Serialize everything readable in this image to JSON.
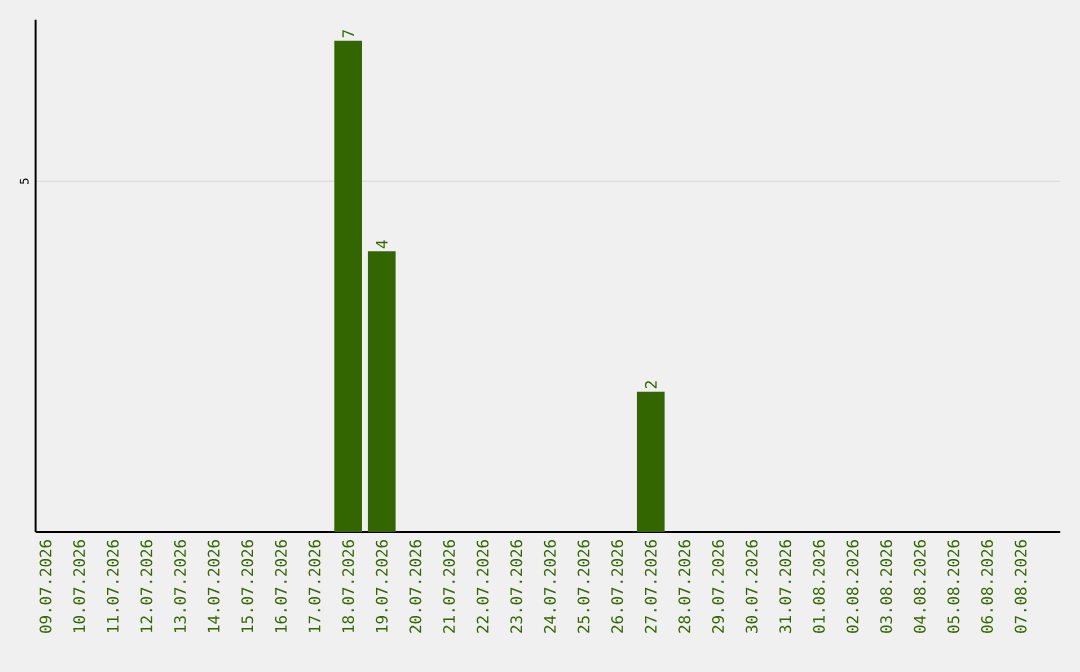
{
  "chart_data": {
    "type": "bar",
    "categories": [
      "09.07.2026",
      "10.07.2026",
      "11.07.2026",
      "12.07.2026",
      "13.07.2026",
      "14.07.2026",
      "15.07.2026",
      "16.07.2026",
      "17.07.2026",
      "18.07.2026",
      "19.07.2026",
      "20.07.2026",
      "21.07.2026",
      "22.07.2026",
      "23.07.2026",
      "24.07.2026",
      "25.07.2026",
      "26.07.2026",
      "27.07.2026",
      "28.07.2026",
      "29.07.2026",
      "30.07.2026",
      "31.07.2026",
      "01.08.2026",
      "02.08.2026",
      "03.08.2026",
      "04.08.2026",
      "05.08.2026",
      "06.08.2026",
      "07.08.2026"
    ],
    "values": [
      0,
      0,
      0,
      0,
      0,
      0,
      0,
      0,
      0,
      7,
      4,
      0,
      0,
      0,
      0,
      0,
      0,
      0,
      2,
      0,
      0,
      0,
      0,
      0,
      0,
      0,
      0,
      0,
      0,
      0
    ],
    "value_labels": [
      null,
      null,
      null,
      null,
      null,
      null,
      null,
      null,
      null,
      "7",
      "4",
      null,
      null,
      null,
      null,
      null,
      null,
      null,
      "2",
      null,
      null,
      null,
      null,
      null,
      null,
      null,
      null,
      null,
      null,
      null
    ],
    "color": "#336600",
    "ylim": [
      0,
      7.3
    ],
    "yticks": [
      5
    ],
    "grid": "y"
  }
}
